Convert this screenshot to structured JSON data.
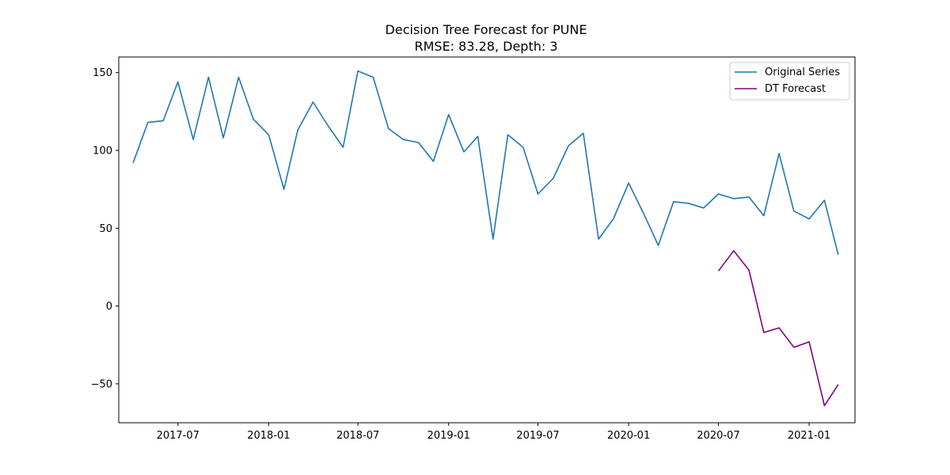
{
  "chart_data": {
    "type": "line",
    "title": "Decision Tree Forecast for PUNE",
    "subtitle": "RMSE: 83.28, Depth: 3",
    "xlabel": "",
    "ylabel": "",
    "xlim": [
      "2017-03-03",
      "2021-04-04"
    ],
    "ylim": [
      -75,
      160
    ],
    "grid": false,
    "legend_position": "top-right",
    "x_ticks": [
      "2017-07",
      "2018-01",
      "2018-07",
      "2019-01",
      "2019-07",
      "2020-01",
      "2020-07",
      "2021-01"
    ],
    "y_ticks": [
      -50,
      0,
      50,
      100,
      150
    ],
    "series": [
      {
        "name": "Original Series",
        "color": "#1f77b4",
        "x": [
          "2017-04",
          "2017-05",
          "2017-06",
          "2017-07",
          "2017-08",
          "2017-09",
          "2017-10",
          "2017-11",
          "2017-12",
          "2018-01",
          "2018-02",
          "2018-03",
          "2018-04",
          "2018-05",
          "2018-06",
          "2018-07",
          "2018-08",
          "2018-09",
          "2018-10",
          "2018-11",
          "2018-12",
          "2019-01",
          "2019-02",
          "2019-03",
          "2019-04",
          "2019-05",
          "2019-06",
          "2019-07",
          "2019-08",
          "2019-09",
          "2019-10",
          "2019-11",
          "2019-12",
          "2020-01",
          "2020-02",
          "2020-03",
          "2020-04",
          "2020-05",
          "2020-06",
          "2020-07",
          "2020-08",
          "2020-09",
          "2020-10",
          "2020-11",
          "2020-12",
          "2021-01",
          "2021-02",
          "2021-03"
        ],
        "values": [
          92,
          118,
          119,
          144,
          107,
          147,
          108,
          147,
          120,
          110,
          75,
          113,
          131,
          116,
          102,
          151,
          147,
          114,
          107,
          105,
          93,
          123,
          99,
          109,
          43,
          110,
          102,
          72,
          82,
          103,
          111,
          43,
          56,
          79,
          59,
          39,
          67,
          66,
          63,
          72,
          69,
          70,
          58,
          98,
          61,
          56,
          68,
          33
        ]
      },
      {
        "name": "DT Forecast",
        "color": "#800080",
        "x": [
          "2020-07",
          "2020-08",
          "2020-09",
          "2020-10",
          "2020-11",
          "2020-12",
          "2021-01",
          "2021-02",
          "2021-03"
        ],
        "values": [
          22.5,
          35.5,
          23,
          -17,
          -14,
          -26.5,
          -23,
          -64,
          -50.5
        ]
      }
    ]
  }
}
